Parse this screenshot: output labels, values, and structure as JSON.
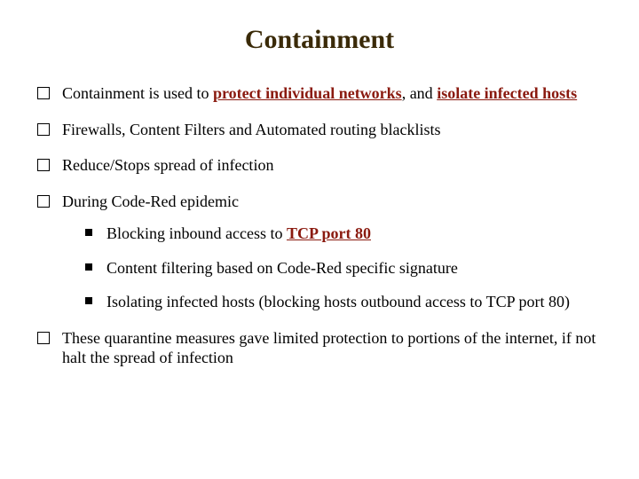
{
  "title": "Containment",
  "title_fontsize": 30,
  "title_color": "#3a2a08",
  "body_fontsize": 18,
  "highlight_color": "#8a1a0f",
  "bullets": {
    "b1_a": "Containment is used to ",
    "b1_h1": "protect individual networks",
    "b1_b": ", and ",
    "b1_h2": "isolate infected hosts",
    "b2": "Firewalls, Content Filters and Automated routing blacklists",
    "b3": "Reduce/Stops spread of infection",
    "b4": "During Code-Red epidemic",
    "b4s1_a": "Blocking inbound access to ",
    "b4s1_h": "TCP port 80",
    "b4s2": "Content filtering based on Code-Red specific signature",
    "b4s3": "Isolating infected hosts (blocking hosts outbound access to TCP port 80)",
    "b5": "These quarantine measures gave limited protection to portions of the internet, if not halt the spread of infection"
  }
}
